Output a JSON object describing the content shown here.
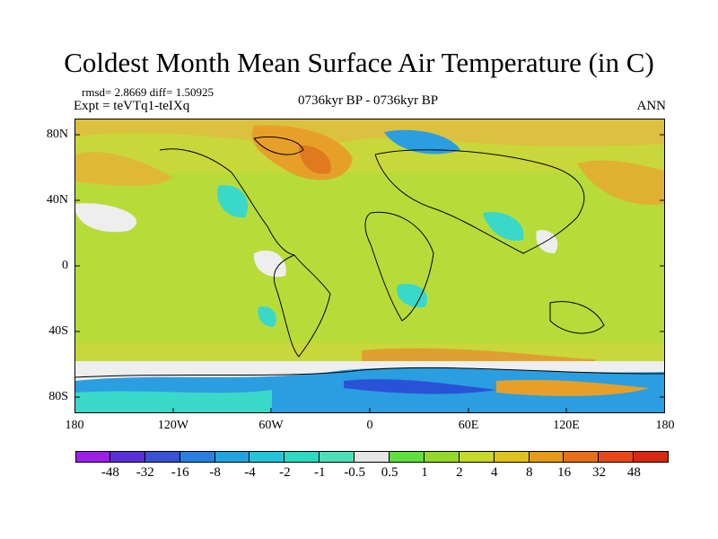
{
  "title": "Coldest Month Mean Surface Air Temperature (in C)",
  "stats": "rmsd= 2.8669  diff= 1.50925",
  "experiment": "Expt = teVTq1-teIXq",
  "period": "0736kyr BP - 0736kyr BP",
  "season": "ANN",
  "lat_labels": [
    "80N",
    "40N",
    "0",
    "40S",
    "80S"
  ],
  "lon_labels": [
    "180",
    "120W",
    "60W",
    "0",
    "60E",
    "120E",
    "180"
  ],
  "colorbar": {
    "labels": [
      "-48",
      "-32",
      "-16",
      "-8",
      "-4",
      "-2",
      "-1",
      "-0.5",
      "0.5",
      "1",
      "2",
      "4",
      "8",
      "16",
      "32",
      "48"
    ],
    "colors": [
      "#9b1fe8",
      "#5a2fd8",
      "#3a52d6",
      "#2a7ee0",
      "#20a4e0",
      "#25c3d8",
      "#2dd9c0",
      "#4de0b8",
      "#e6e6e6",
      "#5ee03e",
      "#96d82a",
      "#c6d82a",
      "#e0c21e",
      "#e69a1a",
      "#e86e18",
      "#e84818",
      "#d82810"
    ]
  },
  "colors": {
    "base_green": "#a8d83a",
    "ocean_lime": "#bedc3a",
    "warm_orange": "#e6a02a",
    "light_orange": "#dcc040",
    "cyan": "#3ad8c8",
    "blue": "#2a7ee0",
    "white_band": "#eeeeee"
  }
}
